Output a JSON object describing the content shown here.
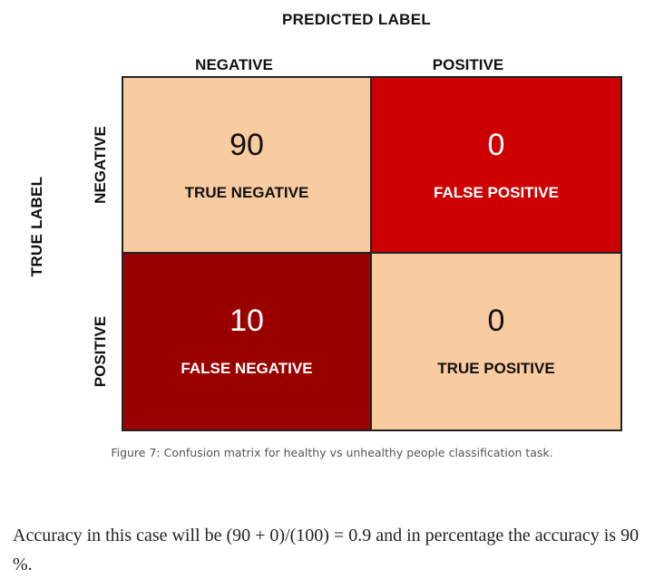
{
  "figure": {
    "predicted_axis_title": "PREDICTED LABEL",
    "true_axis_title": "TRUE LABEL",
    "columns": [
      "NEGATIVE",
      "POSITIVE"
    ],
    "rows": [
      "NEGATIVE",
      "POSITIVE"
    ],
    "cells": [
      {
        "value": "90",
        "label": "TRUE NEGATIVE",
        "color": "#f8cba0",
        "text_color": "#111111"
      },
      {
        "value": "0",
        "label": "FALSE POSITIVE",
        "color": "#cc0000",
        "text_color": "#ffffff"
      },
      {
        "value": "10",
        "label": "FALSE NEGATIVE",
        "color": "#990000",
        "text_color": "#ffffff"
      },
      {
        "value": "0",
        "label": "TRUE POSITIVE",
        "color": "#f8cba0",
        "text_color": "#111111"
      }
    ],
    "caption": "Figure 7: Confusion matrix for healthy vs unhealthy people classification task."
  },
  "body": {
    "paragraph": "Accuracy in this case will be (90 + 0)/(100) = 0.9 and in percentage the accuracy is 90 %."
  }
}
